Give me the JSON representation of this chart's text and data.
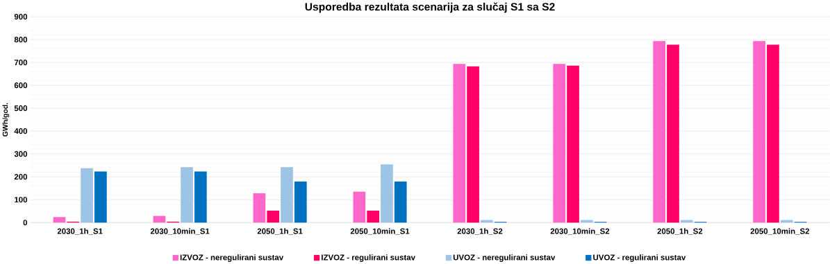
{
  "chart_data": {
    "type": "bar",
    "title": "Usporedba  rezultata scenarija za slučaj S1 sa S2",
    "ylabel": "GWh/god.",
    "categories": [
      "2030_1h_S1",
      "2030_10min_S1",
      "2050_1h_S1",
      "2050_10min_S1",
      "2030_1h_S2",
      "2030_10min_S2",
      "2050_1h_S2",
      "2050_10min_S2"
    ],
    "series": [
      {
        "name": "IZVOZ - neregulirani sustav",
        "color": "#ff66cc",
        "values": [
          24,
          29,
          128,
          135,
          694,
          694,
          794,
          794
        ]
      },
      {
        "name": "IZVOZ - regulirani sustav",
        "color": "#ff0066",
        "values": [
          4,
          4,
          52,
          52,
          683,
          686,
          778,
          778
        ]
      },
      {
        "name": "UVOZ - neregulirani sustav",
        "color": "#9dc3e6",
        "values": [
          238,
          242,
          242,
          254,
          11,
          11,
          11,
          11
        ]
      },
      {
        "name": "UVOZ - regulirani sustav",
        "color": "#0070c0",
        "values": [
          223,
          223,
          179,
          179,
          3,
          3,
          3,
          3
        ]
      }
    ],
    "ylim": [
      0,
      900
    ],
    "yticks": [
      0,
      100,
      200,
      300,
      400,
      500,
      600,
      700,
      800,
      900
    ],
    "grid": "y",
    "legend": "bottom"
  }
}
